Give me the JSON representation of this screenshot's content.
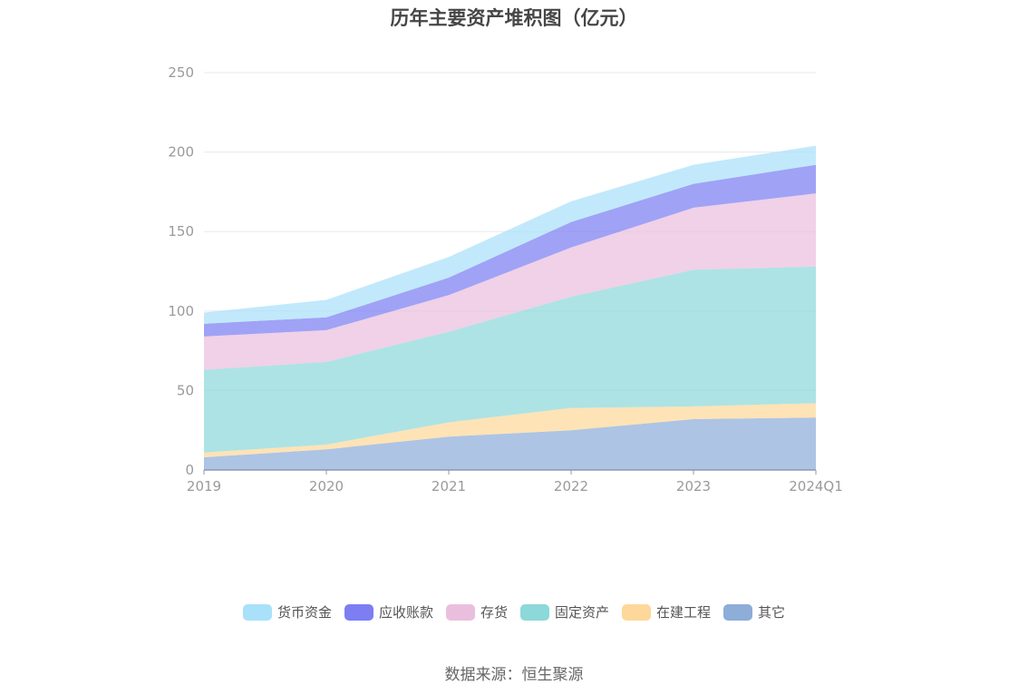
{
  "chart_data": {
    "type": "area",
    "stacked": true,
    "title": "历年主要资产堆积图（亿元）",
    "categories": [
      "2019",
      "2020",
      "2021",
      "2022",
      "2023",
      "2024Q1"
    ],
    "ylim": [
      0,
      250
    ],
    "yticks": [
      "0",
      "50",
      "100",
      "150",
      "200",
      "250"
    ],
    "grid": true,
    "legend_position": "bottom",
    "series": [
      {
        "name": "其它",
        "color": "#8eadd9",
        "values": [
          8,
          13,
          21,
          25,
          32,
          33
        ]
      },
      {
        "name": "在建工程",
        "color": "#fdd89a",
        "values": [
          3,
          3,
          9,
          14,
          8,
          9
        ]
      },
      {
        "name": "固定资产",
        "color": "#8dd8d9",
        "values": [
          52,
          52,
          57,
          70,
          86,
          86
        ]
      },
      {
        "name": "存货",
        "color": "#eabfde",
        "values": [
          21,
          20,
          23,
          31,
          39,
          46
        ]
      },
      {
        "name": "应收账款",
        "color": "#7c7ef2",
        "values": [
          8,
          8,
          11,
          16,
          15,
          18
        ]
      },
      {
        "name": "货币资金",
        "color": "#a9e1fa",
        "values": [
          7,
          11,
          13,
          13,
          12,
          12
        ]
      }
    ],
    "legend_order": [
      "货币资金",
      "应收账款",
      "存货",
      "固定资产",
      "在建工程",
      "其它"
    ]
  },
  "source_note": "数据来源：恒生聚源"
}
